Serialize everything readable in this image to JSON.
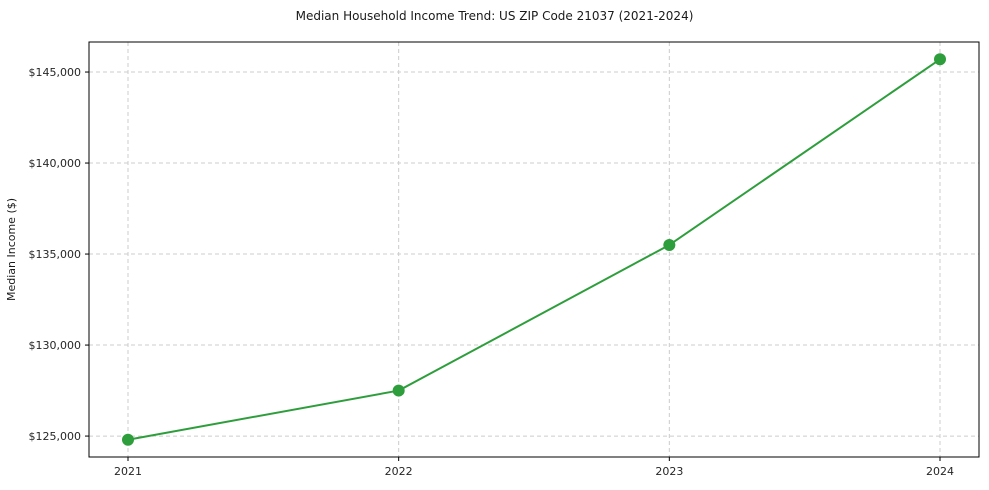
{
  "chart_data": {
    "type": "line",
    "title": "Median Household Income Trend: US ZIP Code 21037 (2021-2024)",
    "xlabel": "",
    "ylabel": "Median Income ($)",
    "categories": [
      "2021",
      "2022",
      "2023",
      "2024"
    ],
    "series": [
      {
        "name": "Median Income",
        "color": "#2e9e3c",
        "values": [
          124800,
          127500,
          135500,
          145700
        ]
      }
    ],
    "ylim": [
      123850,
      146650
    ],
    "yticks": [
      125000,
      130000,
      135000,
      140000,
      145000
    ],
    "ytick_labels": [
      "$125,000",
      "$130,000",
      "$135,000",
      "$140,000",
      "$145,000"
    ],
    "grid": true,
    "grid_color": "#cccccc",
    "axis_color": "#000000",
    "legend_position": "none"
  }
}
